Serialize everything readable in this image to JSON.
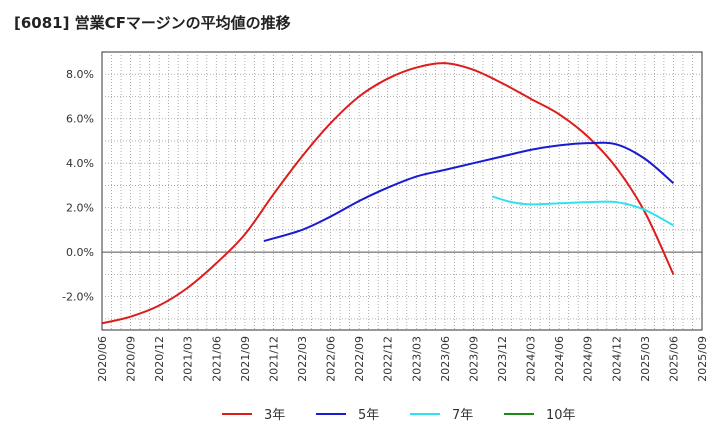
{
  "chart_data": {
    "type": "line",
    "title": "[6081]  営業CFマージンの平均値の推移",
    "xlabel": "",
    "ylabel": "",
    "ylim": [
      -3.5,
      9.0
    ],
    "yticks": [
      -2.0,
      0.0,
      2.0,
      4.0,
      6.0,
      8.0
    ],
    "ytick_labels": [
      "-2.0%",
      "0.0%",
      "2.0%",
      "4.0%",
      "6.0%",
      "8.0%"
    ],
    "x_tick_labels": [
      "2020/06",
      "2020/09",
      "2020/12",
      "2021/03",
      "2021/06",
      "2021/09",
      "2021/12",
      "2022/03",
      "2022/06",
      "2022/09",
      "2022/12",
      "2023/03",
      "2023/06",
      "2023/09",
      "2023/12",
      "2024/03",
      "2024/06",
      "2024/09",
      "2024/12",
      "2025/03",
      "2025/06",
      "2025/09"
    ],
    "grid": true,
    "legend_position": "bottom",
    "series": [
      {
        "name": "3年",
        "color": "#dd1c1c",
        "points": [
          [
            "2020/06",
            -3.2
          ],
          [
            "2020/09",
            -2.9
          ],
          [
            "2020/12",
            -2.4
          ],
          [
            "2021/03",
            -1.6
          ],
          [
            "2021/06",
            -0.5
          ],
          [
            "2021/09",
            0.8
          ],
          [
            "2021/12",
            2.6
          ],
          [
            "2022/03",
            4.3
          ],
          [
            "2022/06",
            5.8
          ],
          [
            "2022/09",
            7.0
          ],
          [
            "2022/12",
            7.8
          ],
          [
            "2023/03",
            8.3
          ],
          [
            "2023/06",
            8.5
          ],
          [
            "2023/09",
            8.2
          ],
          [
            "2023/12",
            7.6
          ],
          [
            "2024/03",
            6.9
          ],
          [
            "2024/06",
            6.2
          ],
          [
            "2024/09",
            5.2
          ],
          [
            "2024/12",
            3.8
          ],
          [
            "2025/03",
            1.8
          ],
          [
            "2025/06",
            -1.0
          ]
        ]
      },
      {
        "name": "5年",
        "color": "#1a1ad2",
        "points": [
          [
            "2021/11",
            0.5
          ],
          [
            "2022/03",
            1.0
          ],
          [
            "2022/06",
            1.6
          ],
          [
            "2022/09",
            2.3
          ],
          [
            "2022/12",
            2.9
          ],
          [
            "2023/03",
            3.4
          ],
          [
            "2023/06",
            3.7
          ],
          [
            "2023/09",
            4.0
          ],
          [
            "2023/12",
            4.3
          ],
          [
            "2024/03",
            4.6
          ],
          [
            "2024/06",
            4.8
          ],
          [
            "2024/09",
            4.9
          ],
          [
            "2024/12",
            4.85
          ],
          [
            "2025/03",
            4.2
          ],
          [
            "2025/06",
            3.1
          ]
        ]
      },
      {
        "name": "7年",
        "color": "#33e0f0",
        "points": [
          [
            "2023/11",
            2.5
          ],
          [
            "2024/01",
            2.25
          ],
          [
            "2024/03",
            2.15
          ],
          [
            "2024/06",
            2.2
          ],
          [
            "2024/09",
            2.25
          ],
          [
            "2024/12",
            2.25
          ],
          [
            "2025/03",
            1.9
          ],
          [
            "2025/06",
            1.2
          ]
        ]
      },
      {
        "name": "10年",
        "color": "#1a8a1a",
        "points": []
      }
    ]
  }
}
